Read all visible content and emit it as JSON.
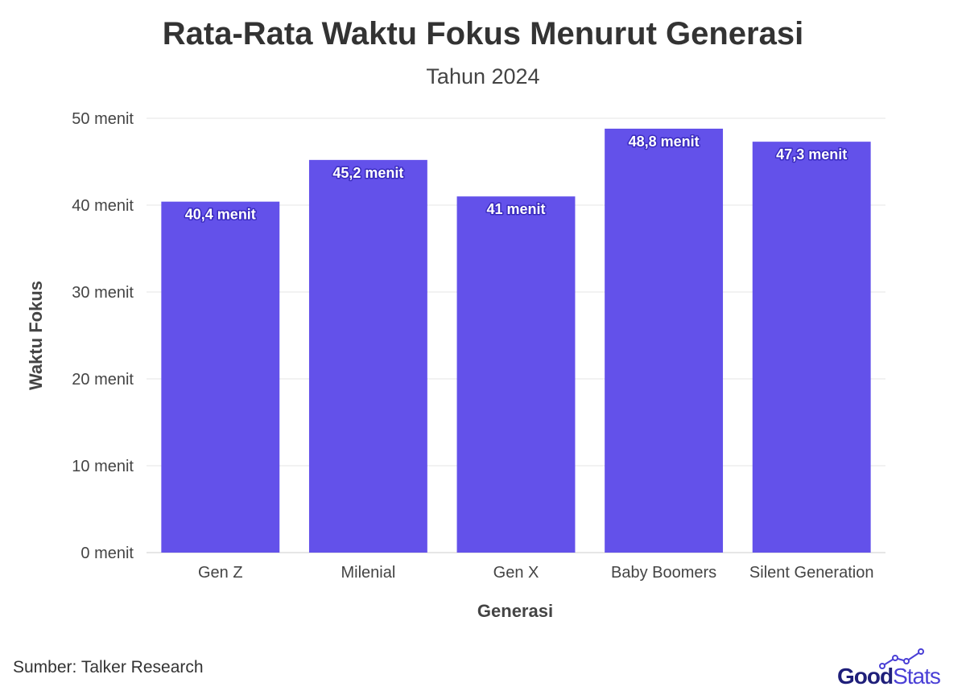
{
  "chart_data": {
    "type": "bar",
    "title": "Rata-Rata Waktu Fokus Menurut Generasi",
    "subtitle": "Tahun 2024",
    "xlabel": "Generasi",
    "ylabel": "Waktu Fokus",
    "categories": [
      "Gen Z",
      "Milenial",
      "Gen X",
      "Baby Boomers",
      "Silent Generation"
    ],
    "values": [
      40.4,
      45.2,
      41,
      48.8,
      47.3
    ],
    "data_labels": [
      "40,4 menit",
      "45,2 menit",
      "41 menit",
      "48,8 menit",
      "47,3 menit"
    ],
    "ylim": [
      0,
      50
    ],
    "yticks": [
      0,
      10,
      20,
      30,
      40,
      50
    ],
    "ytick_labels": [
      "0 menit",
      "10 menit",
      "20 menit",
      "30 menit",
      "40 menit",
      "50 menit"
    ],
    "grid": true,
    "bar_color": "#6351ea"
  },
  "source": "Sumber: Talker Research",
  "brand": {
    "part1": "Good",
    "part2": "Stats",
    "color1": "#1f1f7a",
    "color2": "#4a3fd6"
  }
}
